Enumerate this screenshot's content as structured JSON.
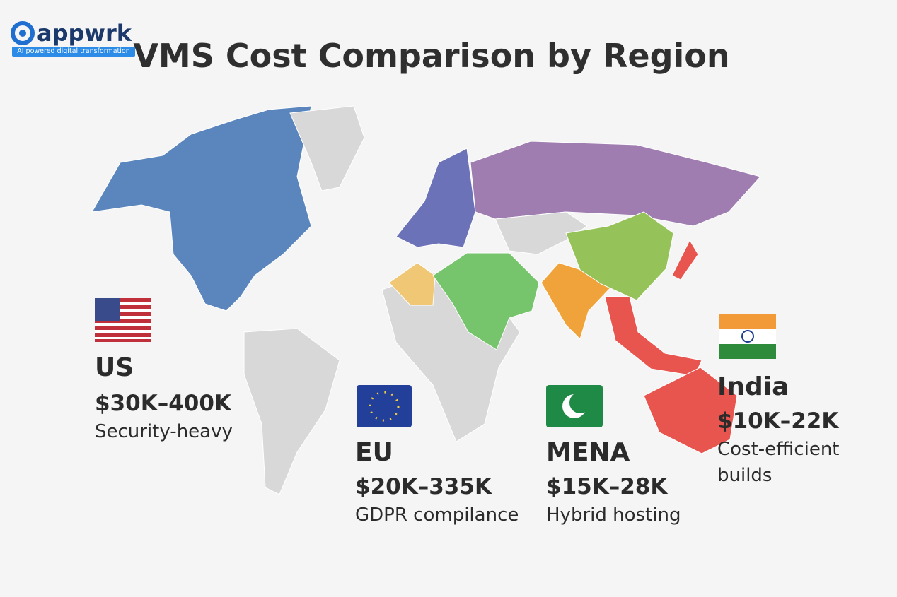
{
  "logo": {
    "name": "appwrk",
    "tagline": "AI powered digital transformation"
  },
  "title": "VMS Cost Comparison by Region",
  "regions": [
    {
      "name": "US",
      "cost": "$30K–400K",
      "note": "Security-heavy"
    },
    {
      "name": "EU",
      "cost": "$20K–335K",
      "note": "GDPR compilance"
    },
    {
      "name": "MENA",
      "cost": "$15K–28K",
      "note": "Hybrid hosting"
    },
    {
      "name": "India",
      "cost": "$10K–22K",
      "note": "Cost-efficient builds"
    }
  ]
}
